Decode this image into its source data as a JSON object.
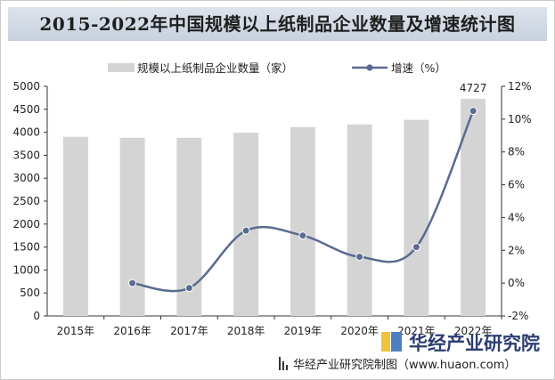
{
  "title": "2015-2022年中国规模以上纸制品企业数量及增速统计图",
  "legend": {
    "bar_label": "规模以上纸制品企业数量（家）",
    "line_label": "增速（%）"
  },
  "source": "华经产业研究院制图（www.huaon.com）",
  "logo_text": "华经产业研究院",
  "colors": {
    "bar": "#d4d4d4",
    "line": "#5a6a90",
    "title_bg": "#cfd7e2"
  },
  "chart_data": {
    "type": "bar",
    "categories": [
      "2015年",
      "2016年",
      "2017年",
      "2018年",
      "2019年",
      "2020年",
      "2021年",
      "2022年"
    ],
    "series": [
      {
        "name": "规模以上纸制品企业数量（家）",
        "type": "bar",
        "axis": "left",
        "values": [
          3900,
          3880,
          3880,
          3990,
          4110,
          4170,
          4270,
          4727
        ]
      },
      {
        "name": "增速（%）",
        "type": "line",
        "axis": "right",
        "smooth": true,
        "values": [
          null,
          0.0,
          -0.3,
          3.2,
          2.9,
          1.6,
          2.2,
          10.5
        ]
      }
    ],
    "data_labels": [
      {
        "category": "2022年",
        "text": "4727"
      }
    ],
    "y_left": {
      "min": 0,
      "max": 5000,
      "ticks": [
        "0",
        "500",
        "1000",
        "1500",
        "2000",
        "2500",
        "3000",
        "3500",
        "4000",
        "4500",
        "5000"
      ]
    },
    "y_right": {
      "min": -2,
      "max": 12,
      "ticks": [
        "-2%",
        "0%",
        "2%",
        "4%",
        "6%",
        "8%",
        "10%",
        "12%"
      ]
    },
    "grid": false,
    "legend_position": "top"
  }
}
